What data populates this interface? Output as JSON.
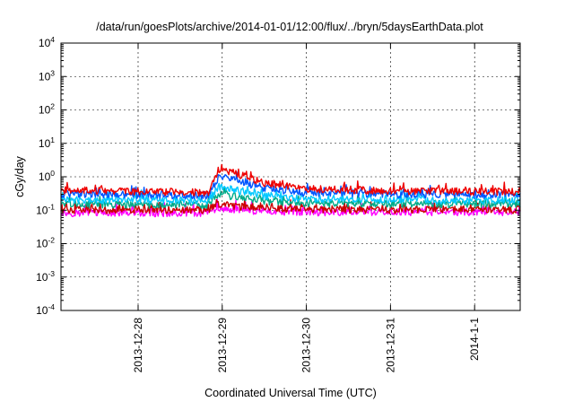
{
  "chart_data": {
    "type": "line",
    "title": "/data/run/goesPlots/archive/2014-01-01/12:00/flux/../bryn/5daysEarthData.plot",
    "xlabel": "Coordinated Universal Time (UTC)",
    "ylabel": "cGy/day",
    "y_scale": "log",
    "ylim": [
      0.0001,
      10000
    ],
    "y_ticks": [
      {
        "base": "10",
        "exp": "-4"
      },
      {
        "base": "10",
        "exp": "-3"
      },
      {
        "base": "10",
        "exp": "-2"
      },
      {
        "base": "10",
        "exp": "-1"
      },
      {
        "base": "10",
        "exp": "0"
      },
      {
        "base": "10",
        "exp": "1"
      },
      {
        "base": "10",
        "exp": "2"
      },
      {
        "base": "10",
        "exp": "3"
      },
      {
        "base": "10",
        "exp": "4"
      }
    ],
    "xlim": [
      "2013-12-27 02:00",
      "2014-01-01 13:00"
    ],
    "x_ticks": [
      {
        "label": "2013-12-28",
        "value": "2013-12-28 00:00"
      },
      {
        "label": "2013-12-29",
        "value": "2013-12-29 00:00"
      },
      {
        "label": "2013-12-30",
        "value": "2013-12-30 00:00"
      },
      {
        "label": "2013-12-31",
        "value": "2013-12-31 00:00"
      },
      {
        "label": "2014-1-1",
        "value": "2014-01-01 00:00"
      }
    ],
    "grid": true,
    "series": [
      {
        "color": "#ff00ff",
        "x": [
          "2013-12-27 02:00",
          "2013-12-28 00:00",
          "2013-12-28 20:00",
          "2013-12-28 23:00",
          "2013-12-29 03:00",
          "2013-12-29 12:00",
          "2013-12-30 00:00",
          "2013-12-31 00:00",
          "2014-01-01 00:00",
          "2014-01-01 13:00"
        ],
        "y": [
          0.08,
          0.08,
          0.08,
          0.11,
          0.1,
          0.09,
          0.085,
          0.085,
          0.085,
          0.085
        ]
      },
      {
        "color": "#cc0000",
        "x": [
          "2013-12-27 02:00",
          "2013-12-28 00:00",
          "2013-12-28 20:00",
          "2013-12-28 23:00",
          "2013-12-29 03:00",
          "2013-12-29 12:00",
          "2013-12-30 00:00",
          "2013-12-31 00:00",
          "2014-01-01 00:00",
          "2014-01-01 13:00"
        ],
        "y": [
          0.1,
          0.1,
          0.1,
          0.14,
          0.13,
          0.11,
          0.105,
          0.1,
          0.1,
          0.1
        ]
      },
      {
        "color": "#00aa88",
        "x": [
          "2013-12-27 02:00",
          "2013-12-28 00:00",
          "2013-12-28 20:00",
          "2013-12-28 23:00",
          "2013-12-29 03:00",
          "2013-12-29 12:00",
          "2013-12-30 00:00",
          "2013-12-31 00:00",
          "2014-01-01 00:00",
          "2014-01-01 13:00"
        ],
        "y": [
          0.15,
          0.14,
          0.14,
          0.3,
          0.25,
          0.18,
          0.15,
          0.15,
          0.15,
          0.15
        ]
      },
      {
        "color": "#00c8ff",
        "x": [
          "2013-12-27 02:00",
          "2013-12-28 00:00",
          "2013-12-28 20:00",
          "2013-12-28 23:00",
          "2013-12-29 03:00",
          "2013-12-29 12:00",
          "2013-12-30 00:00",
          "2013-12-31 00:00",
          "2014-01-01 00:00",
          "2014-01-01 13:00"
        ],
        "y": [
          0.2,
          0.19,
          0.19,
          0.5,
          0.4,
          0.26,
          0.21,
          0.2,
          0.19,
          0.19
        ]
      },
      {
        "color": "#0055ff",
        "x": [
          "2013-12-27 02:00",
          "2013-12-28 00:00",
          "2013-12-28 20:00",
          "2013-12-28 23:00",
          "2013-12-29 03:00",
          "2013-12-29 12:00",
          "2013-12-30 00:00",
          "2013-12-31 00:00",
          "2014-01-01 00:00",
          "2014-01-01 13:00"
        ],
        "y": [
          0.3,
          0.28,
          0.27,
          1.0,
          0.8,
          0.45,
          0.32,
          0.3,
          0.28,
          0.28
        ]
      },
      {
        "color": "#ee0000",
        "x": [
          "2013-12-27 02:00",
          "2013-12-28 00:00",
          "2013-12-28 20:00",
          "2013-12-28 23:00",
          "2013-12-29 03:00",
          "2013-12-29 12:00",
          "2013-12-30 00:00",
          "2013-12-31 00:00",
          "2014-01-01 00:00",
          "2014-01-01 13:00"
        ],
        "y": [
          0.38,
          0.35,
          0.33,
          1.7,
          1.3,
          0.65,
          0.42,
          0.37,
          0.35,
          0.35
        ]
      }
    ]
  }
}
